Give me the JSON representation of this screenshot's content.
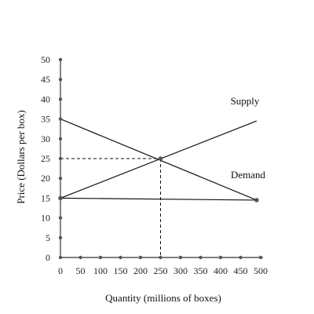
{
  "chart_data": {
    "type": "line",
    "title": "",
    "xlabel": "Quantity (millions of boxes)",
    "ylabel": "Price (Dollars per box)",
    "xlim": [
      0,
      500
    ],
    "ylim": [
      0,
      50
    ],
    "xticks": [
      0,
      50,
      100,
      150,
      200,
      250,
      300,
      350,
      400,
      450,
      500
    ],
    "yticks": [
      0,
      5,
      10,
      15,
      20,
      25,
      30,
      35,
      40,
      45,
      50
    ],
    "grid": false,
    "series": [
      {
        "name": "Supply",
        "x": [
          0,
          490
        ],
        "y": [
          15,
          34.5
        ]
      },
      {
        "name": "Demand",
        "x": [
          0,
          490
        ],
        "y": [
          35,
          14.5
        ]
      }
    ],
    "horizontal_line": {
      "x": [
        0,
        490
      ],
      "y": [
        15,
        14.5
      ]
    },
    "equilibrium": {
      "x": 250,
      "y": 25
    },
    "colors": {
      "line": "#111111",
      "marker": "#555555",
      "axis": "#333333"
    }
  }
}
